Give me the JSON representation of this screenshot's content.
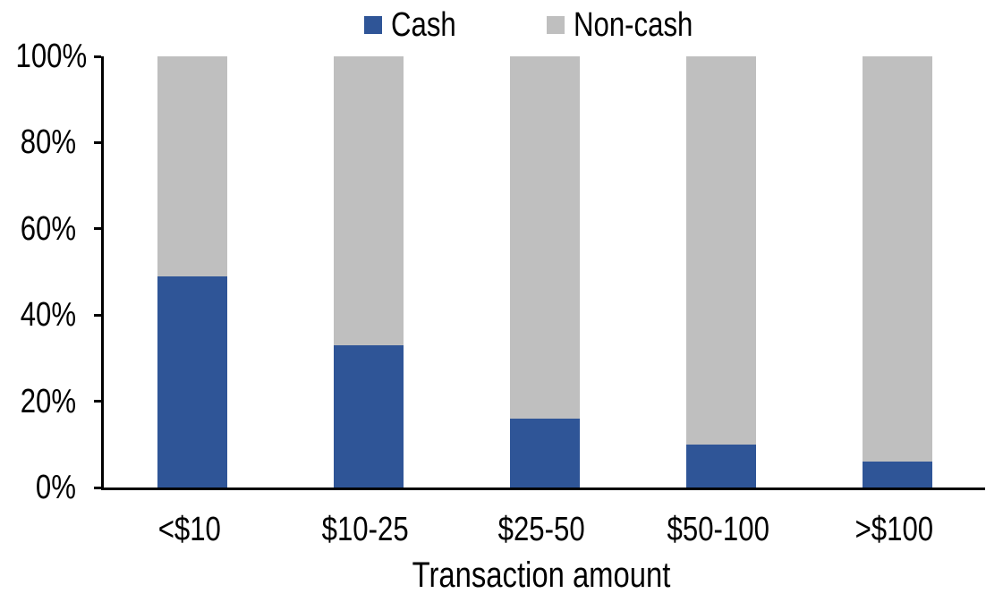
{
  "chart_data": {
    "type": "bar",
    "stacked": true,
    "percent_stacked": true,
    "title": "",
    "xlabel": "Transaction amount",
    "ylabel": "",
    "categories": [
      "<$10",
      "$10-25",
      "$25-50",
      "$50-100",
      ">$100"
    ],
    "series": [
      {
        "name": "Cash",
        "color": "#2F5597",
        "values": [
          49,
          33,
          16,
          10,
          6
        ]
      },
      {
        "name": "Non-cash",
        "color": "#BFBFBF",
        "values": [
          51,
          67,
          84,
          90,
          94
        ]
      }
    ],
    "ylim": [
      0,
      100
    ],
    "yticks": [
      "0%",
      "20%",
      "40%",
      "60%",
      "80%",
      "100%"
    ],
    "legend_position": "top-center",
    "grid": false,
    "axis_color": "#000000",
    "text_color": "#000000"
  }
}
